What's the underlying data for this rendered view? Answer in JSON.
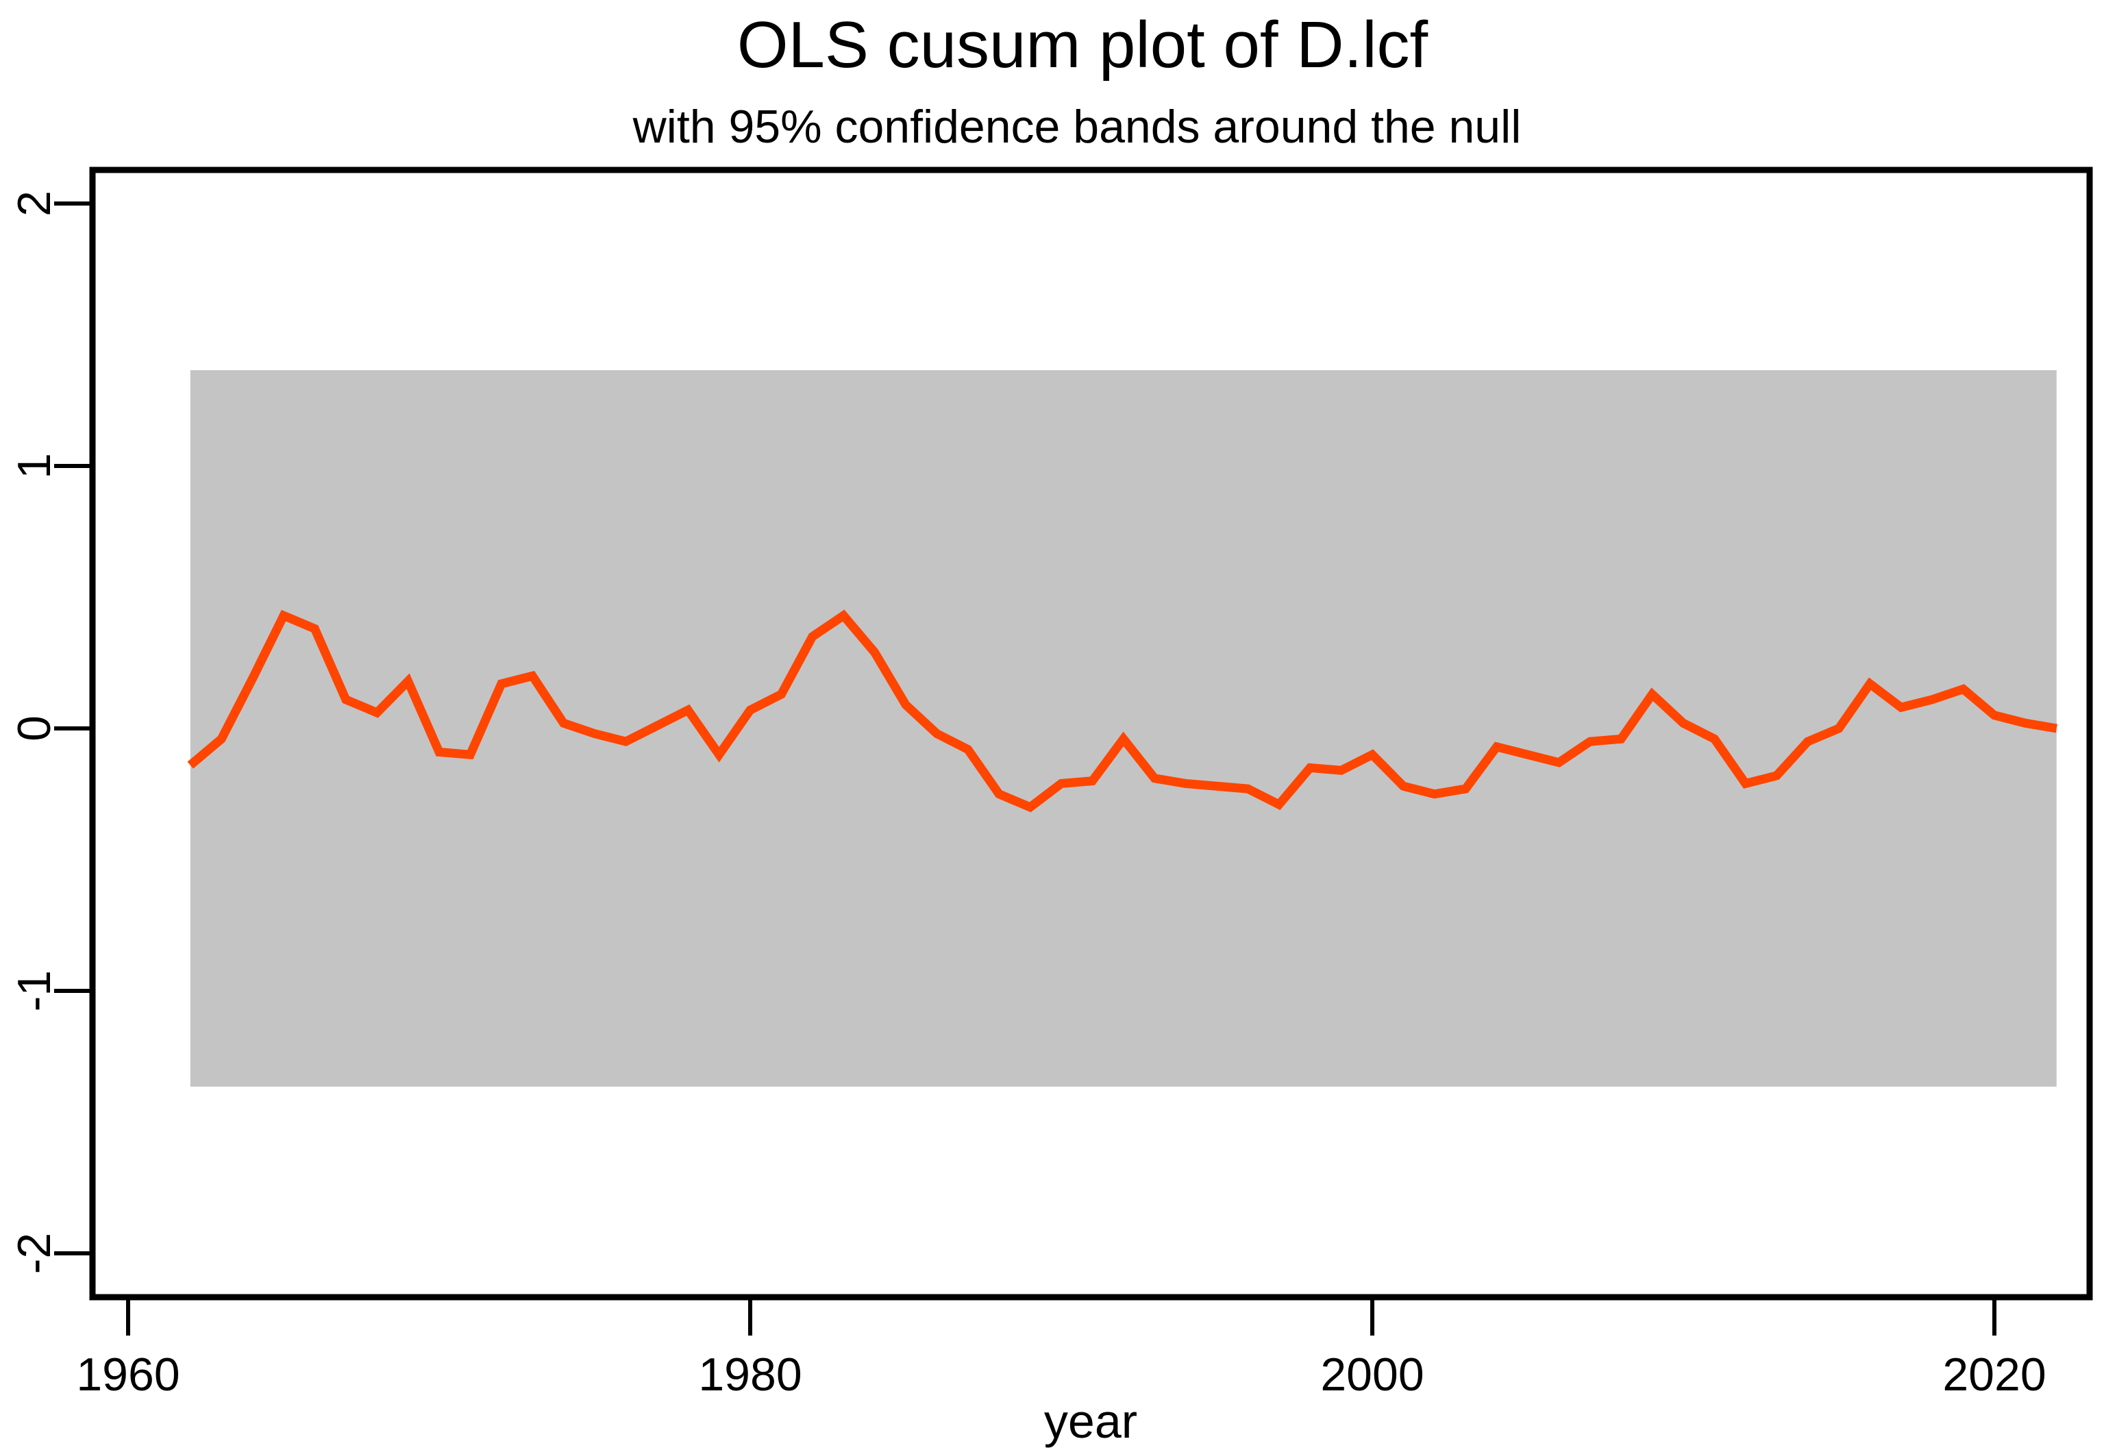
{
  "chart_data": {
    "type": "line",
    "title": "OLS cusum plot of D.lcf",
    "subtitle": "with 95% confidence bands around the null",
    "xlabel": "year",
    "ylabel": "",
    "x_tick_years": [
      1960,
      1980,
      2000,
      2020
    ],
    "x_tick_labels": [
      "1960",
      "1980",
      "2000",
      "2020"
    ],
    "y_tick_values": [
      2,
      1,
      0,
      -1,
      -2
    ],
    "y_tick_labels": [
      "2",
      "1",
      "0",
      "-1",
      "-2"
    ],
    "xlim": [
      1958.85,
      2023.1
    ],
    "ylim": [
      -2.17,
      2.13
    ],
    "grid": false,
    "legend": "none",
    "confidence_band": {
      "label": "95% confidence band around the null",
      "x_start": 1962,
      "x_end": 2022,
      "y_low": -1.365,
      "y_high": 1.365,
      "color": "#c4c4c4"
    },
    "series": [
      {
        "name": "OLS cusum of D.lcf",
        "color": "#ff4500",
        "x": [
          1962,
          1963,
          1964,
          1965,
          1966,
          1967,
          1968,
          1969,
          1970,
          1971,
          1972,
          1973,
          1974,
          1975,
          1976,
          1977,
          1978,
          1979,
          1980,
          1981,
          1982,
          1983,
          1984,
          1985,
          1986,
          1987,
          1988,
          1989,
          1990,
          1991,
          1992,
          1993,
          1994,
          1995,
          1996,
          1997,
          1998,
          1999,
          2000,
          2001,
          2002,
          2003,
          2004,
          2005,
          2006,
          2007,
          2008,
          2009,
          2010,
          2011,
          2012,
          2013,
          2014,
          2015,
          2016,
          2017,
          2018,
          2019,
          2020,
          2021,
          2022
        ],
        "values": [
          -0.14,
          -0.04,
          0.19,
          0.43,
          0.38,
          0.11,
          0.06,
          0.18,
          -0.09,
          -0.1,
          0.17,
          0.2,
          0.02,
          -0.02,
          -0.05,
          0.01,
          0.07,
          -0.1,
          0.07,
          0.13,
          0.35,
          0.43,
          0.29,
          0.09,
          -0.02,
          -0.08,
          -0.25,
          -0.3,
          -0.21,
          -0.2,
          -0.04,
          -0.19,
          -0.21,
          -0.22,
          -0.23,
          -0.29,
          -0.15,
          -0.16,
          -0.1,
          -0.22,
          -0.25,
          -0.23,
          -0.07,
          -0.1,
          -0.13,
          -0.05,
          -0.04,
          0.13,
          0.02,
          -0.04,
          -0.21,
          -0.18,
          -0.05,
          0.0,
          0.17,
          0.08,
          0.11,
          0.15,
          0.05,
          0.02,
          0.0
        ]
      }
    ],
    "colors": {
      "line": "#ff4500",
      "band": "#c4c4c4",
      "axis": "#000000",
      "background": "#ffffff"
    }
  }
}
